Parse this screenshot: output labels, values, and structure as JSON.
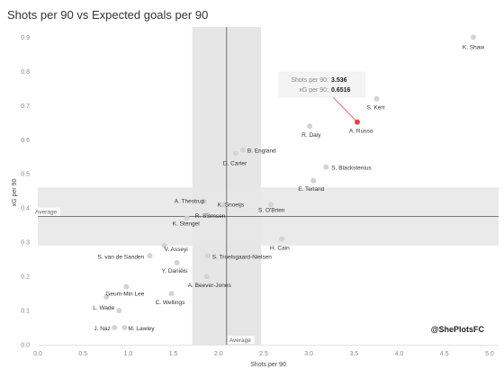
{
  "chart_data": {
    "type": "scatter",
    "title": "Shots per 90 vs Expected goals per 90",
    "xlabel": "Shots per 90",
    "ylabel": "xG per 90",
    "xlim": [
      0,
      5.1
    ],
    "ylim": [
      0,
      0.93
    ],
    "x_ticks": [
      "0.0",
      "0.5",
      "1.0",
      "1.5",
      "2.0",
      "2.5",
      "3.0",
      "3.5",
      "4.0",
      "4.5",
      "5.0"
    ],
    "y_ticks": [
      "0.0",
      "0.1",
      "0.2",
      "0.3",
      "0.4",
      "0.5",
      "0.6",
      "0.7",
      "0.8",
      "0.9"
    ],
    "average_x": 2.09,
    "average_y": 0.375,
    "average_x_band": [
      1.71,
      2.47
    ],
    "average_y_band": [
      0.29,
      0.46
    ],
    "average_label_x": "Average",
    "average_label_y": "Average",
    "grid": false,
    "credit": "@ShePlotsFC",
    "highlight": {
      "name": "A. Russo",
      "x": 3.536,
      "y": 0.6516,
      "x_label": "Shots per 90:",
      "x_value": "3.536",
      "y_label": "xG per 90:",
      "y_value": "0.6516",
      "color": "#e0454b"
    },
    "point_color": "#d3d3d3",
    "points": [
      {
        "name": "K. Shaw",
        "x": 4.82,
        "y": 0.9
      },
      {
        "name": "S. Kerr",
        "x": 3.75,
        "y": 0.72
      },
      {
        "name": "R. Daly",
        "x": 3.01,
        "y": 0.64
      },
      {
        "name": "A. Russo",
        "x": 3.536,
        "y": 0.6516
      },
      {
        "name": "B. England",
        "x": 2.27,
        "y": 0.57
      },
      {
        "name": "D. Carter",
        "x": 2.19,
        "y": 0.56
      },
      {
        "name": "S. Blackstenius",
        "x": 3.19,
        "y": 0.52
      },
      {
        "name": "E. Terland",
        "x": 3.05,
        "y": 0.48
      },
      {
        "name": "A. Thestrup",
        "x": 1.84,
        "y": 0.42
      },
      {
        "name": "K. Snoeijs",
        "x": 2.07,
        "y": 0.41
      },
      {
        "name": "S. O'Brien",
        "x": 2.58,
        "y": 0.41
      },
      {
        "name": "R. Siemsen",
        "x": 1.88,
        "y": 0.38
      },
      {
        "name": "K. Stengel",
        "x": 1.65,
        "y": 0.37
      },
      {
        "name": "H. Cain",
        "x": 2.7,
        "y": 0.31
      },
      {
        "name": "V. Asseyi",
        "x": 1.4,
        "y": 0.29
      },
      {
        "name": "S. van de Sanden",
        "x": 1.24,
        "y": 0.26
      },
      {
        "name": "S. Troelsgaard-Nielsen",
        "x": 1.88,
        "y": 0.26
      },
      {
        "name": "Y. Daniëls",
        "x": 1.54,
        "y": 0.24
      },
      {
        "name": "A. Beever-Jones",
        "x": 1.87,
        "y": 0.2
      },
      {
        "name": "Geum-Min Lee",
        "x": 0.98,
        "y": 0.17
      },
      {
        "name": "C. Wellings",
        "x": 1.48,
        "y": 0.15
      },
      {
        "name": "L. Wade",
        "x": 0.76,
        "y": 0.14
      },
      {
        "name": "",
        "x": 0.9,
        "y": 0.1
      },
      {
        "name": "J. Naz",
        "x": 0.85,
        "y": 0.05
      },
      {
        "name": "M. Lawley",
        "x": 0.96,
        "y": 0.05
      }
    ]
  }
}
